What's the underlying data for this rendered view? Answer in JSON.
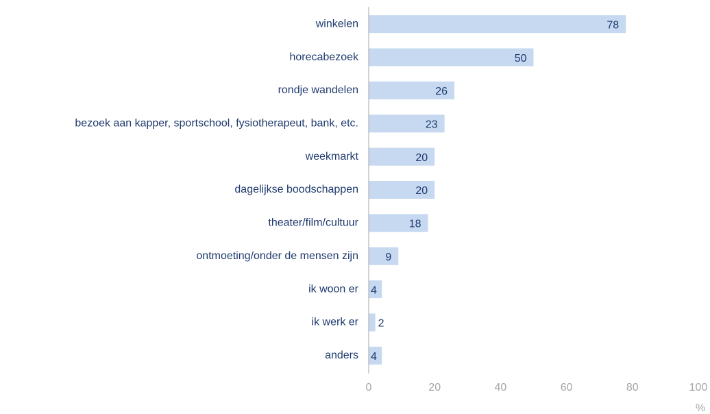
{
  "chart_data": {
    "type": "bar",
    "orientation": "horizontal",
    "categories": [
      "winkelen",
      "horecabezoek",
      "rondje wandelen",
      "bezoek aan kapper, sportschool, fysiotherapeut, bank, etc.",
      "weekmarkt",
      "dagelijkse boodschappen",
      "theater/film/cultuur",
      "ontmoeting/onder de mensen zijn",
      "ik woon er",
      "ik werk er",
      "anders"
    ],
    "values": [
      78,
      50,
      26,
      23,
      20,
      20,
      18,
      9,
      4,
      2,
      4
    ],
    "color": "#c6d9f0",
    "xlim": [
      0,
      100
    ],
    "xticks": [
      0,
      20,
      40,
      60,
      80,
      100
    ],
    "xlabel": "%",
    "grid": false
  }
}
